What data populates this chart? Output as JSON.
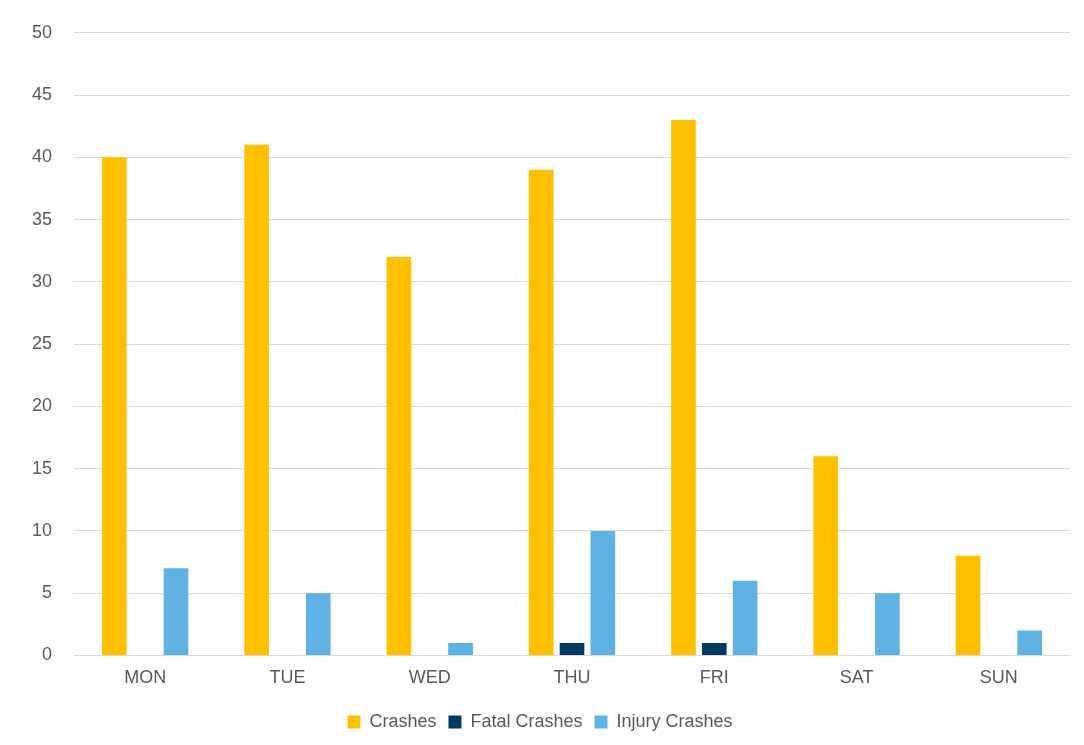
{
  "chart_data": {
    "type": "bar",
    "categories": [
      "MON",
      "TUE",
      "WED",
      "THU",
      "FRI",
      "SAT",
      "SUN"
    ],
    "series": [
      {
        "name": "Crashes",
        "color": "#ffc000",
        "values": [
          40,
          41,
          32,
          39,
          43,
          16,
          8
        ]
      },
      {
        "name": "Fatal Crashes",
        "color": "#003a63",
        "values": [
          0,
          0,
          0,
          1,
          1,
          0,
          0
        ]
      },
      {
        "name": "Injury Crashes",
        "color": "#5eb3e4",
        "values": [
          7,
          5,
          1,
          10,
          6,
          5,
          2
        ]
      }
    ],
    "ylim": [
      0,
      50
    ],
    "yticks": [
      0,
      5,
      10,
      15,
      20,
      25,
      30,
      35,
      40,
      45,
      50
    ],
    "grid": "y",
    "legend": "bottom"
  }
}
